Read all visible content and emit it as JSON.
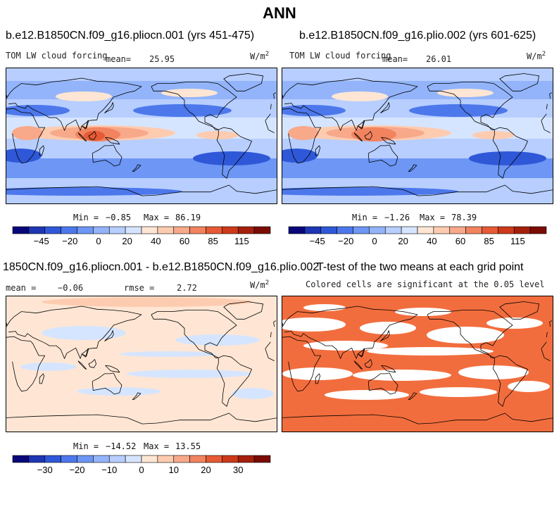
{
  "figure": {
    "title": "ANN",
    "colors": {
      "cold_scale": [
        "#08087a",
        "#1e36b4",
        "#2f58d8",
        "#4d78ec",
        "#6d96f5",
        "#93b4fa",
        "#b7ceff",
        "#d6e5ff"
      ],
      "warm_scale": [
        "#ffe6d4",
        "#fdccb0",
        "#f8a98a",
        "#f2835f",
        "#e65a35",
        "#cc3a1a",
        "#a5200c",
        "#7a0c04"
      ],
      "land": "#ffffff",
      "coast": "#000000",
      "significance": "#f26d3d"
    }
  },
  "panels": {
    "top_left": {
      "title": "b.e12.B1850CN.f09_g16.pliocn.001 (yrs 451-475)",
      "variable": "TOM LW cloud forcing",
      "mean_label": "mean=",
      "mean_value": "25.95",
      "units": "W/m",
      "units_exp": "2",
      "min_label": "Min =",
      "min_value": "−0.85",
      "max_label": "Max =",
      "max_value": "86.19"
    },
    "top_right": {
      "title": "b.e12.B1850CN.f09_g16.plio.002 (yrs 601-625)",
      "variable": "TOM LW cloud forcing",
      "mean_label": "mean=",
      "mean_value": "26.01",
      "units": "W/m",
      "units_exp": "2",
      "min_label": "Min =",
      "min_value": "−1.26",
      "max_label": "Max =",
      "max_value": "78.39"
    },
    "bottom_left": {
      "title": "1850CN.f09_g16.pliocn.001 - b.e12.B1850CN.f09_g16.plio.002",
      "mean_label": "mean =",
      "mean_value": "−0.06",
      "rmse_label": "rmse =",
      "rmse_value": "2.72",
      "units": "W/m",
      "units_exp": "2",
      "min_label": "Min =",
      "min_value": "−14.52",
      "max_label": "Max =",
      "max_value": "13.55"
    },
    "bottom_right": {
      "title": "T-test of the two means at each grid point",
      "subtitle": "Colored cells are significant at the 0.05 level"
    }
  },
  "chart_data": [
    {
      "type": "heatmap",
      "title": "b.e12.B1850CN.f09_g16.pliocn.001 (yrs 451-475)",
      "variable": "TOM LW cloud forcing",
      "units": "W/m2",
      "mean": 25.95,
      "min": -0.85,
      "max": 86.19,
      "colorbar_ticks": [
        -45,
        -20,
        0,
        20,
        40,
        60,
        85,
        115
      ]
    },
    {
      "type": "heatmap",
      "title": "b.e12.B1850CN.f09_g16.plio.002 (yrs 601-625)",
      "variable": "TOM LW cloud forcing",
      "units": "W/m2",
      "mean": 26.01,
      "min": -1.26,
      "max": 78.39,
      "colorbar_ticks": [
        -45,
        -20,
        0,
        20,
        40,
        60,
        85,
        115
      ]
    },
    {
      "type": "heatmap",
      "title": "1850CN.f09_g16.pliocn.001 - b.e12.B1850CN.f09_g16.plio.002",
      "units": "W/m2",
      "mean": -0.06,
      "rmse": 2.72,
      "min": -14.52,
      "max": 13.55,
      "colorbar_ticks": [
        -30,
        -20,
        -10,
        0,
        10,
        20,
        30
      ]
    },
    {
      "type": "heatmap",
      "title": "T-test of the two means at each grid point",
      "subtitle": "Colored cells are significant at the 0.05 level",
      "significance_level": 0.05
    }
  ]
}
